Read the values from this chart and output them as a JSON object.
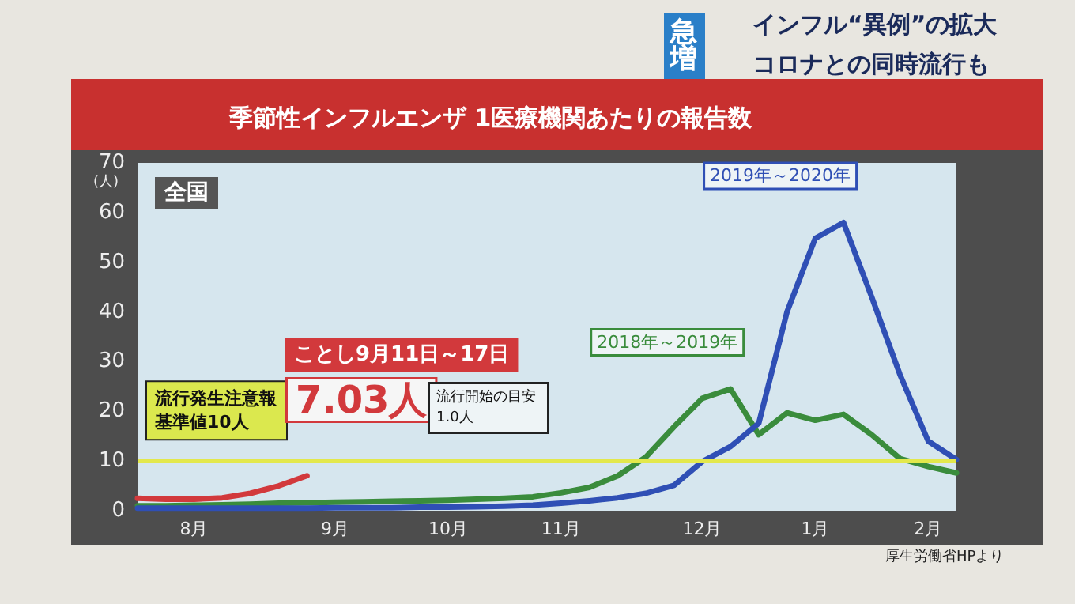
{
  "chart_data": {
    "type": "line",
    "title": "季節性インフルエンザ 1医療機関あたりの報告数",
    "ylabel": "(人)",
    "categories": [
      null,
      null,
      "8月",
      null,
      null,
      null,
      null,
      "9月",
      null,
      null,
      null,
      "10月",
      null,
      null,
      null,
      "11月",
      null,
      null,
      null,
      null,
      "12月",
      null,
      null,
      null,
      "1月",
      null,
      null,
      null,
      "2月",
      null
    ],
    "ylim": [
      0,
      70
    ],
    "yticks": [
      0,
      10,
      20,
      30,
      40,
      50,
      60,
      70
    ],
    "grid": false,
    "legend": false,
    "marker": "none",
    "line_style": "solid",
    "series": [
      {
        "name": "2018年～2019年",
        "color": "#3a8c3c",
        "values": [
          1.0,
          1.0,
          1.1,
          1.2,
          1.3,
          1.5,
          1.6,
          1.7,
          1.8,
          1.9,
          2.0,
          2.1,
          2.3,
          2.5,
          2.8,
          3.6,
          4.7,
          7,
          10.8,
          16.9,
          22.6,
          24.5,
          15.3,
          19.7,
          18.2,
          19.4,
          15.3,
          10.5,
          8.9,
          7.6
        ]
      },
      {
        "name": "2019年～2020年",
        "color": "#2f4fb5",
        "values": [
          0.5,
          0.5,
          0.5,
          0.5,
          0.5,
          0.5,
          0.5,
          0.6,
          0.6,
          0.6,
          0.7,
          0.7,
          0.8,
          0.9,
          1.1,
          1.5,
          2.0,
          2.6,
          3.5,
          5.1,
          9.9,
          12.9,
          17.6,
          40,
          54.8,
          58,
          43,
          27.4,
          14,
          10.3
        ]
      },
      {
        "color": "#d2393c",
        "values": [
          2.5,
          2.3,
          2.3,
          2.6,
          3.5,
          5.0,
          7.03,
          null,
          null,
          null,
          null,
          null,
          null,
          null,
          null,
          null,
          null,
          null,
          null,
          null,
          null,
          null,
          null,
          null,
          null,
          null,
          null,
          null,
          null,
          null
        ]
      }
    ],
    "ref_lines": [
      {
        "axis": "y",
        "value": 10,
        "label": "流行発生注意報基準値10人",
        "color": "#e3e84c"
      }
    ],
    "annotations": [
      "急増",
      "インフル“異例”の拡大",
      "コロナとの同時流行も",
      "全国",
      "ことし9月11日～17日",
      "7.03人",
      "流行開始の目安1.0人",
      "厚生労働省HPより"
    ]
  }
}
